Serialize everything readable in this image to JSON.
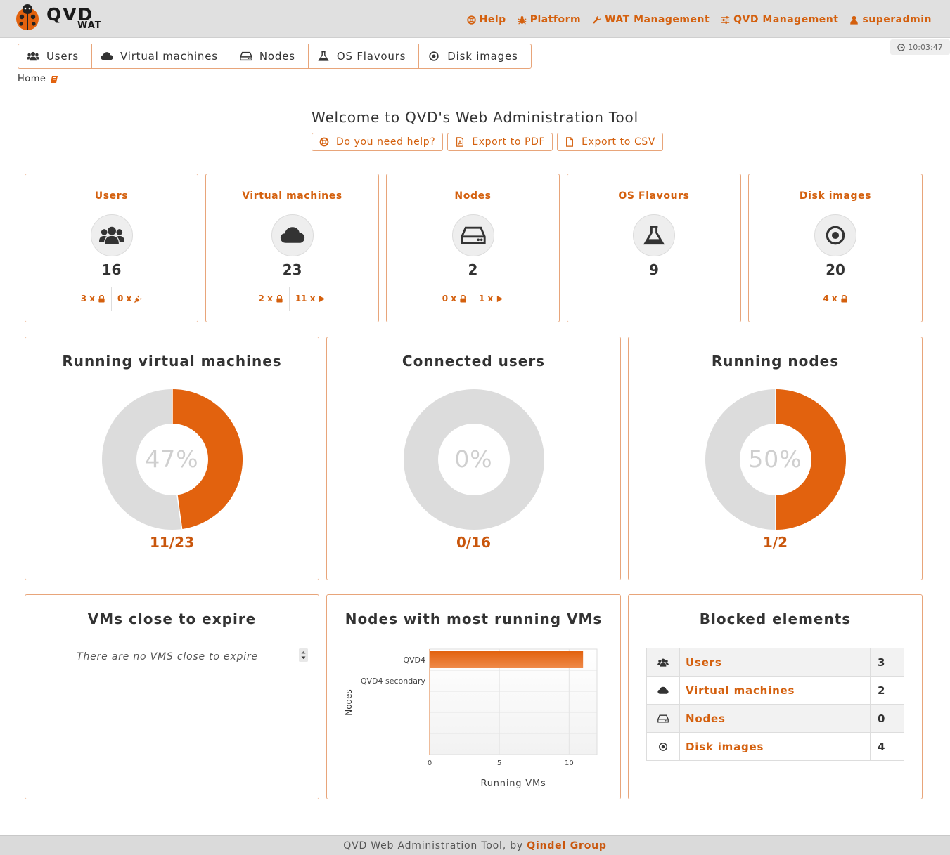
{
  "app": {
    "logo_text": "QVD",
    "logo_sub": "WAT"
  },
  "topnav": [
    {
      "label": "Help",
      "icon": "lifebuoy-icon"
    },
    {
      "label": "Platform",
      "icon": "bug-icon"
    },
    {
      "label": "WAT Management",
      "icon": "wrench-icon"
    },
    {
      "label": "QVD Management",
      "icon": "sliders-icon"
    },
    {
      "label": "superadmin",
      "icon": "user-icon"
    }
  ],
  "clock": "10:03:47",
  "menu": [
    {
      "label": "Users",
      "icon": "users-icon"
    },
    {
      "label": "Virtual machines",
      "icon": "cloud-icon"
    },
    {
      "label": "Nodes",
      "icon": "hdd-icon"
    },
    {
      "label": "OS Flavours",
      "icon": "flask-icon"
    },
    {
      "label": "Disk images",
      "icon": "dot-circle-icon"
    }
  ],
  "breadcrumb": {
    "home": "Home"
  },
  "welcome": "Welcome to QVD's Web Administration Tool",
  "actions": {
    "help": "Do you need help?",
    "pdf": "Export to PDF",
    "csv": "Export to CSV"
  },
  "stats": [
    {
      "title": "Users",
      "count": "16",
      "sub": [
        {
          "text": "3 x",
          "icon": "lock-icon"
        },
        {
          "text": "0 x",
          "icon": "plug-icon"
        }
      ]
    },
    {
      "title": "Virtual machines",
      "count": "23",
      "sub": [
        {
          "text": "2 x",
          "icon": "lock-icon"
        },
        {
          "text": "11 x",
          "icon": "play-icon"
        }
      ]
    },
    {
      "title": "Nodes",
      "count": "2",
      "sub": [
        {
          "text": "0 x",
          "icon": "lock-icon"
        },
        {
          "text": "1 x",
          "icon": "play-icon"
        }
      ]
    },
    {
      "title": "OS Flavours",
      "count": "9",
      "sub": []
    },
    {
      "title": "Disk images",
      "count": "20",
      "sub": [
        {
          "text": "4 x",
          "icon": "lock-icon"
        }
      ]
    }
  ],
  "donuts": [
    {
      "title": "Running virtual machines",
      "percent": "47%",
      "ratio": "11/23",
      "value": 11,
      "total": 23
    },
    {
      "title": "Connected users",
      "percent": "0%",
      "ratio": "0/16",
      "value": 0,
      "total": 16
    },
    {
      "title": "Running nodes",
      "percent": "50%",
      "ratio": "1/2",
      "value": 1,
      "total": 2
    }
  ],
  "expire": {
    "title": "VMs close to expire",
    "message": "There are no VMS close to expire"
  },
  "nodes_chart": {
    "title": "Nodes with most running VMs"
  },
  "chart_data": {
    "type": "bar",
    "orientation": "horizontal",
    "categories": [
      "QVD4",
      "QVD4 secondary"
    ],
    "values": [
      11,
      0
    ],
    "xlabel": "Running VMs",
    "ylabel": "Nodes",
    "xlim": [
      0,
      12
    ],
    "xticks": [
      0,
      5,
      10
    ],
    "grid": true,
    "color": "#e2620e"
  },
  "blocked": {
    "title": "Blocked elements",
    "rows": [
      {
        "label": "Users",
        "count": "3",
        "icon": "users-icon"
      },
      {
        "label": "Virtual machines",
        "count": "2",
        "icon": "cloud-icon"
      },
      {
        "label": "Nodes",
        "count": "0",
        "icon": "hdd-icon"
      },
      {
        "label": "Disk images",
        "count": "4",
        "icon": "dot-circle-icon"
      }
    ]
  },
  "footer": {
    "text": "QVD Web Administration Tool, by",
    "brand": "Qindel Group"
  },
  "colors": {
    "accent": "#d4600e",
    "donut_fill": "#e2620e",
    "donut_empty": "#dcdcdc",
    "border": "#e8a57a"
  }
}
